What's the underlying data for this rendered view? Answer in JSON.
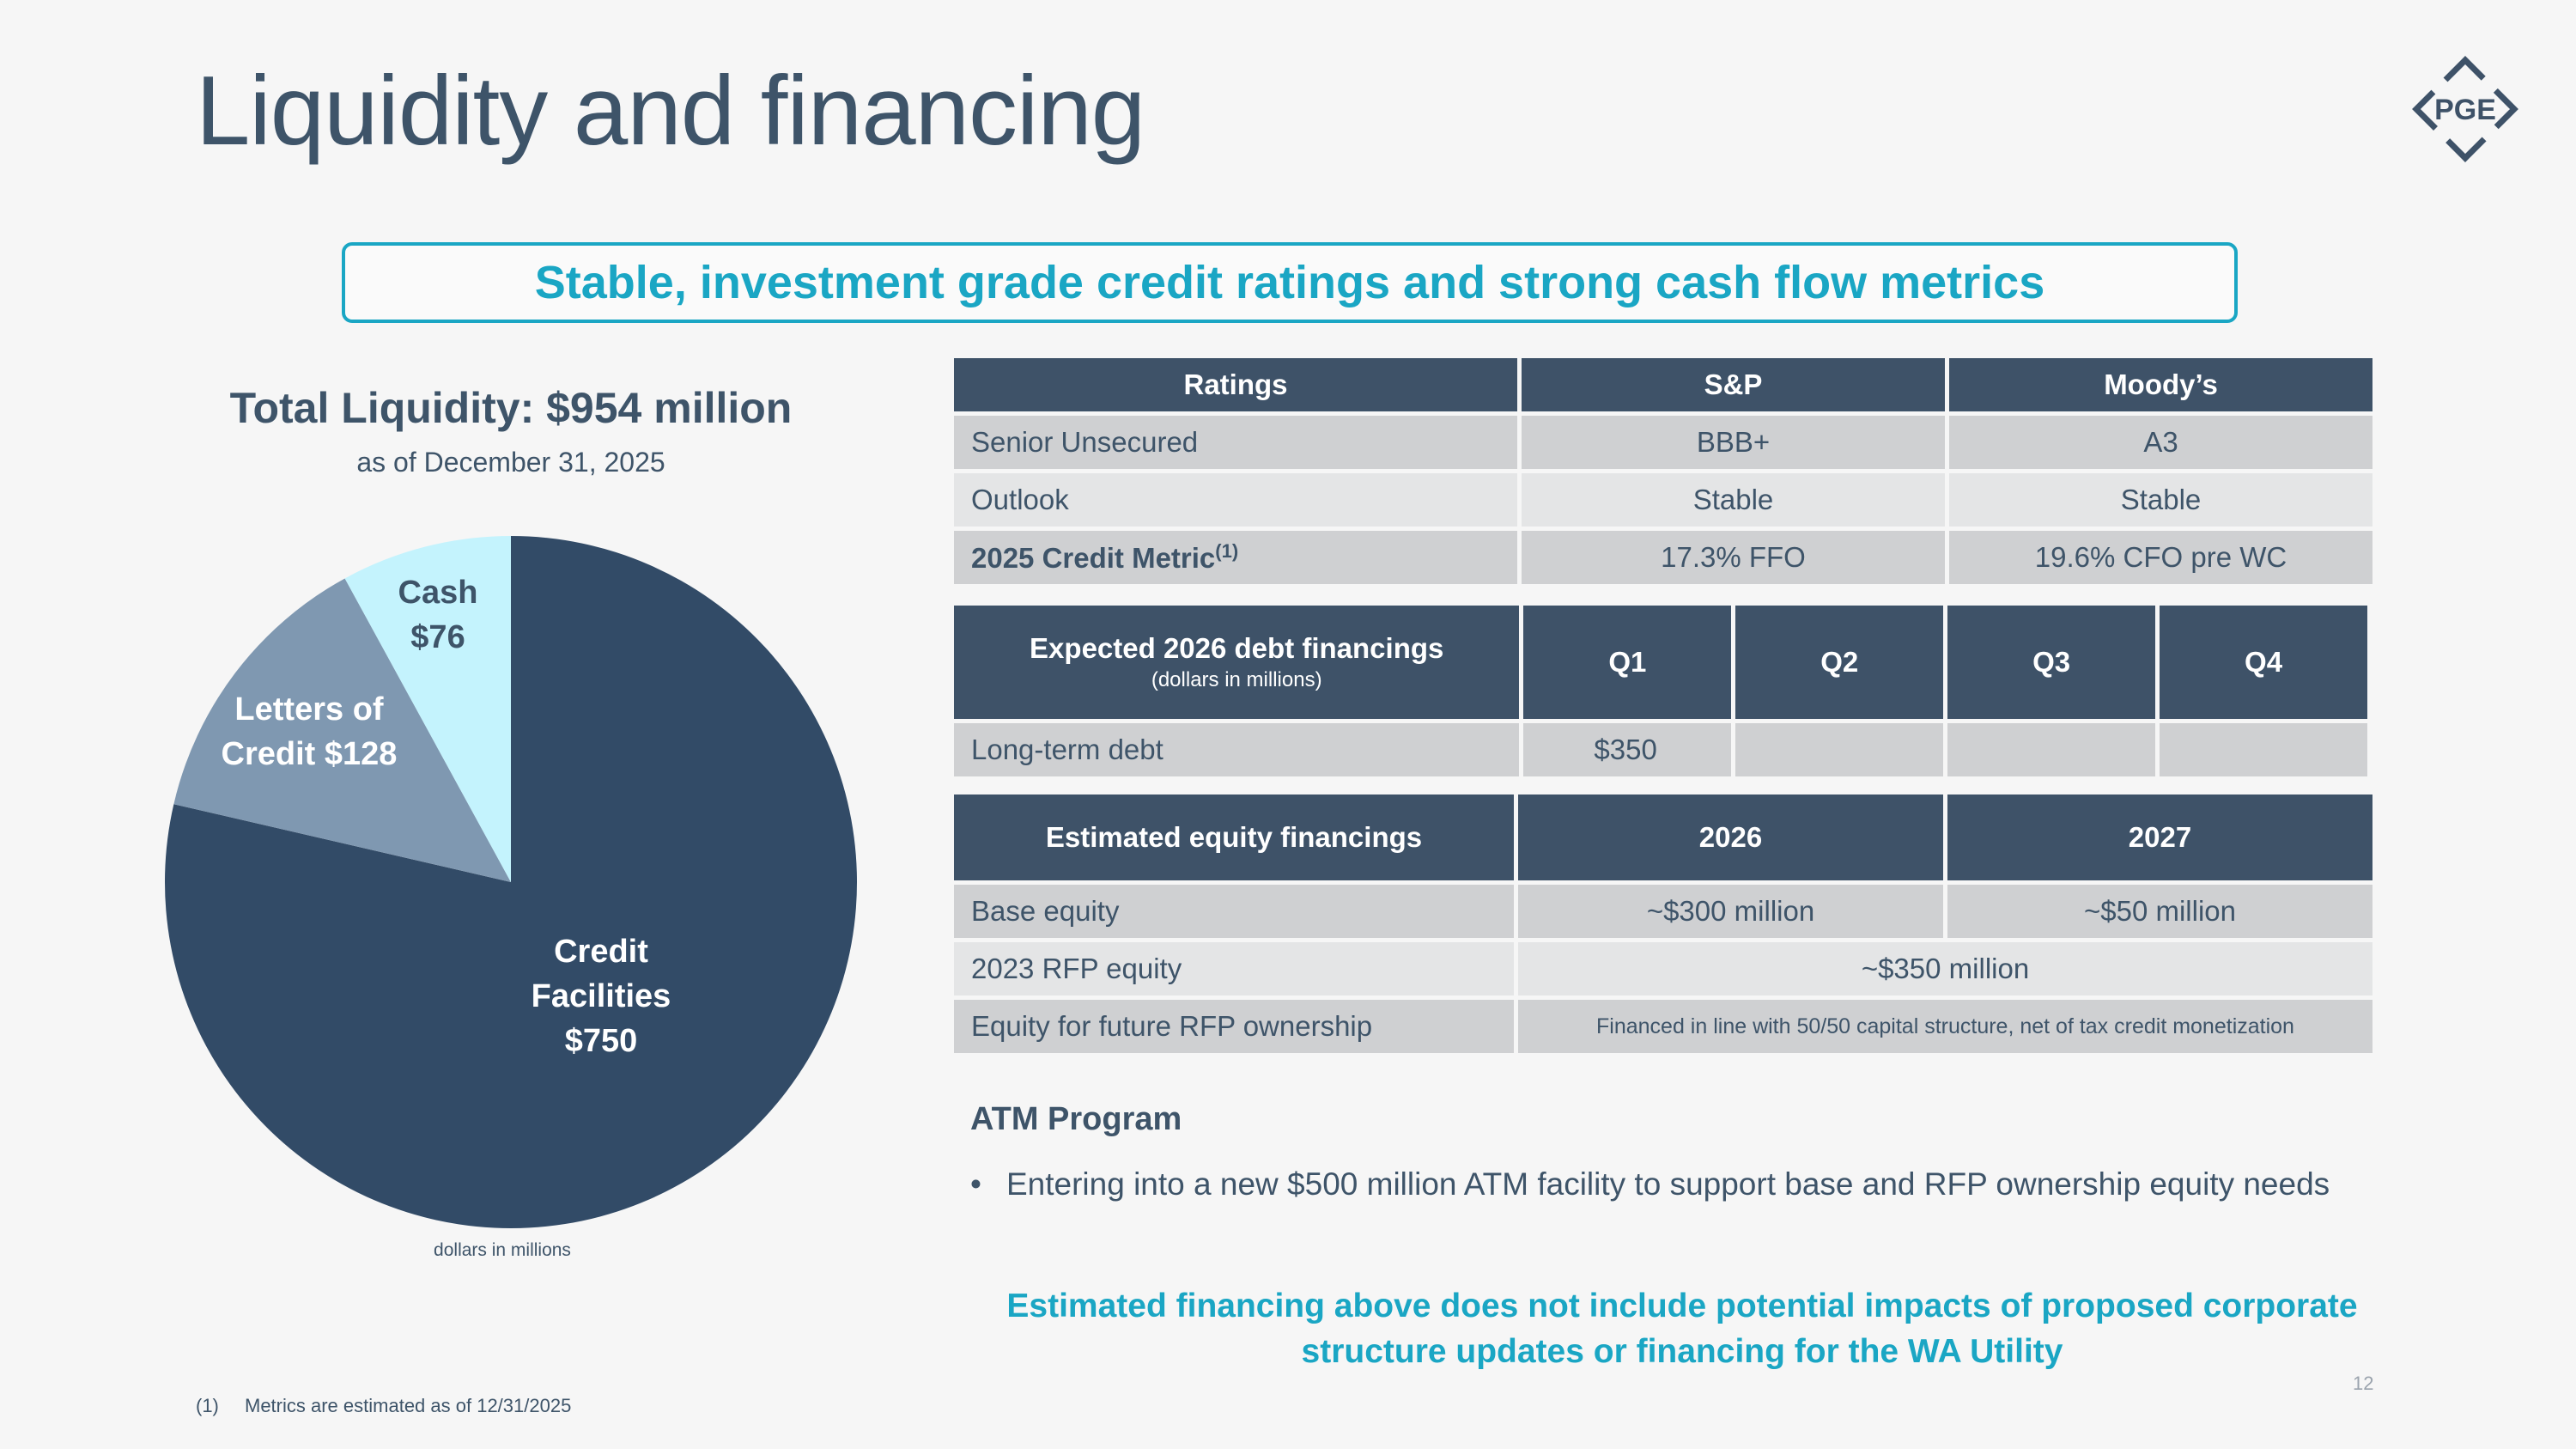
{
  "slide": {
    "title": "Liquidity and financing",
    "banner": "Stable, investment grade credit ratings and strong cash flow metrics",
    "page_number": "12",
    "logo_text": "PGE",
    "footnote": {
      "marker": "(1)",
      "text": "Metrics are estimated as of 12/31/2025"
    }
  },
  "colors": {
    "navy": "#3e5268",
    "teal": "#1aa6c4",
    "pie_credit": "#324b67",
    "pie_loc": "#7f98b1",
    "pie_cash": "#c4f3fd"
  },
  "chart_data": {
    "type": "pie",
    "title": "Total Liquidity: $954 million",
    "subtitle": "as of December 31, 2025",
    "note": "dollars in millions",
    "slices": [
      {
        "name": "Credit Facilities",
        "value": 750,
        "label_lines": [
          "Credit",
          "Facilities",
          "$750"
        ],
        "color": "#324b67",
        "text_color": "#ffffff"
      },
      {
        "name": "Letters of Credit",
        "value": 128,
        "label_lines": [
          "Letters of",
          "Credit $128"
        ],
        "color": "#7f98b1",
        "text_color": "#ffffff"
      },
      {
        "name": "Cash",
        "value": 76,
        "label_lines": [
          "Cash",
          "$76"
        ],
        "color": "#c4f3fd",
        "text_color": "#3e5469"
      }
    ]
  },
  "ratings": {
    "headers": [
      "Ratings",
      "S&P",
      "Moody’s"
    ],
    "rows": [
      {
        "label": "Senior Unsecured",
        "sp": "BBB+",
        "moodys": "A3"
      },
      {
        "label": "Outlook",
        "sp": "Stable",
        "moodys": "Stable"
      },
      {
        "label": "2025 Credit Metric",
        "sup": "(1)",
        "sp": "17.3% FFO",
        "moodys": "19.6% CFO pre WC"
      }
    ]
  },
  "debt": {
    "header": "Expected 2026 debt financings",
    "header_sub": "(dollars in millions)",
    "quarters": [
      "Q1",
      "Q2",
      "Q3",
      "Q4"
    ],
    "row": {
      "label": "Long-term debt",
      "values": [
        "$350",
        "",
        "",
        ""
      ]
    }
  },
  "equity": {
    "headers": [
      "Estimated equity financings",
      "2026",
      "2027"
    ],
    "rows": [
      {
        "label": "Base equity",
        "y2026": "~$300 million",
        "y2027": "~$50 million"
      },
      {
        "label": "2023 RFP equity",
        "merged": "~$350 million"
      },
      {
        "label": "Equity for future RFP ownership",
        "merged": "Financed in line with 50/50 capital structure, net of tax credit monetization"
      }
    ]
  },
  "atm": {
    "title": "ATM Program",
    "bullet": "Entering into a new $500 million ATM facility to support base and RFP ownership equity needs"
  },
  "note": "Estimated financing above does not include potential impacts of proposed corporate structure updates or financing for the WA Utility"
}
